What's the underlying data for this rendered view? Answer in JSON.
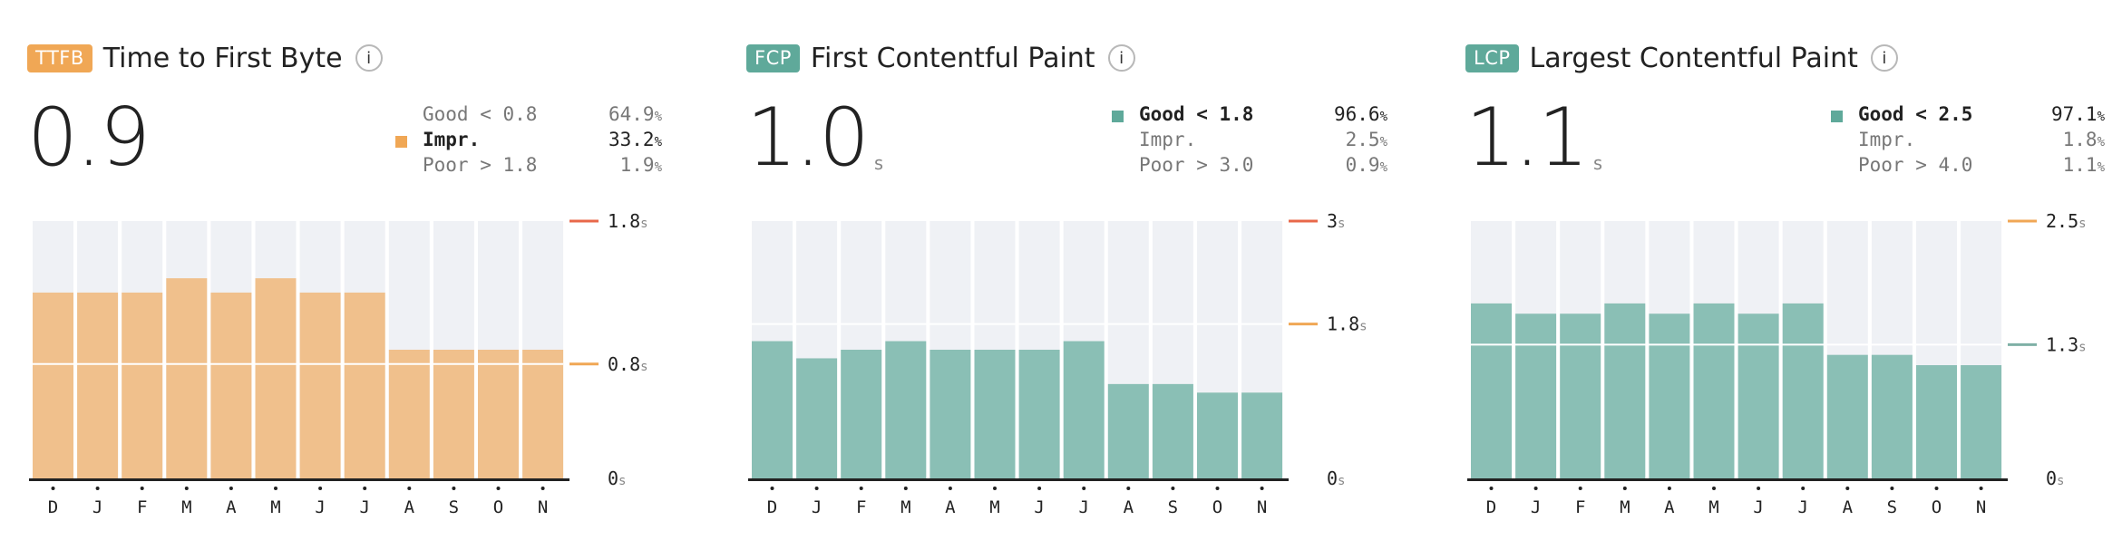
{
  "colors": {
    "ttfb": "#f0a755",
    "ttfb_bar": "#f0c08c",
    "good": "#5fa99a",
    "good_bar": "#8abfb5",
    "bg_bar": "#eff1f5",
    "threshold_poor": "#e8684a",
    "threshold_ni": "#f0a755",
    "threshold_good": "#7fb0a6"
  },
  "panels": [
    {
      "badge": "TTFB",
      "title": "Time to First Byte",
      "info_icon": "i",
      "value": "0.9",
      "unit": "",
      "legend": [
        {
          "label": "Good < 0.8",
          "pct": "64.9",
          "active": false
        },
        {
          "label": "Impr.",
          "pct": "33.2",
          "active": true
        },
        {
          "label": "Poor > 1.8",
          "pct": "1.9",
          "active": false
        }
      ]
    },
    {
      "badge": "FCP",
      "title": "First Contentful Paint",
      "info_icon": "i",
      "value": "1.0",
      "unit": "s",
      "legend": [
        {
          "label": "Good < 1.8",
          "pct": "96.6",
          "active": true
        },
        {
          "label": "Impr.",
          "pct": "2.5",
          "active": false
        },
        {
          "label": "Poor > 3.0",
          "pct": "0.9",
          "active": false
        }
      ]
    },
    {
      "badge": "LCP",
      "title": "Largest Contentful Paint",
      "info_icon": "i",
      "value": "1.1",
      "unit": "s",
      "legend": [
        {
          "label": "Good < 2.5",
          "pct": "97.1",
          "active": true
        },
        {
          "label": "Impr.",
          "pct": "1.8",
          "active": false
        },
        {
          "label": "Poor > 4.0",
          "pct": "1.1",
          "active": false
        }
      ]
    }
  ],
  "chart_data": [
    {
      "type": "bar",
      "title": "Time to First Byte",
      "categories": [
        "D",
        "J",
        "F",
        "M",
        "A",
        "M",
        "J",
        "J",
        "A",
        "S",
        "O",
        "N"
      ],
      "values": [
        1.3,
        1.3,
        1.3,
        1.4,
        1.3,
        1.4,
        1.3,
        1.3,
        0.9,
        0.9,
        0.9,
        0.9
      ],
      "ylim": [
        0,
        1.8
      ],
      "y_ticks": [
        {
          "value": 1.8,
          "label": "1.8",
          "unit": "s",
          "color": "#e8684a"
        },
        {
          "value": 0.8,
          "label": "0.8",
          "unit": "s",
          "color": "#f0a755"
        },
        {
          "value": 0,
          "label": "0",
          "unit": "s",
          "color": ""
        }
      ],
      "gridlines": [
        0.8
      ],
      "bar_color": "#f0c08c",
      "grid": true
    },
    {
      "type": "bar",
      "title": "First Contentful Paint",
      "categories": [
        "D",
        "J",
        "F",
        "M",
        "A",
        "M",
        "J",
        "J",
        "A",
        "S",
        "O",
        "N"
      ],
      "values": [
        1.6,
        1.4,
        1.5,
        1.6,
        1.5,
        1.5,
        1.5,
        1.6,
        1.1,
        1.1,
        1.0,
        1.0
      ],
      "ylim": [
        0,
        3.0
      ],
      "y_ticks": [
        {
          "value": 3.0,
          "label": "3",
          "unit": "s",
          "color": "#e8684a"
        },
        {
          "value": 1.8,
          "label": "1.8",
          "unit": "s",
          "color": "#f0a755"
        },
        {
          "value": 0,
          "label": "0",
          "unit": "s",
          "color": ""
        }
      ],
      "gridlines": [
        1.8
      ],
      "bar_color": "#8abfb5",
      "grid": true
    },
    {
      "type": "bar",
      "title": "Largest Contentful Paint",
      "categories": [
        "D",
        "J",
        "F",
        "M",
        "A",
        "M",
        "J",
        "J",
        "A",
        "S",
        "O",
        "N"
      ],
      "values": [
        1.7,
        1.6,
        1.6,
        1.7,
        1.6,
        1.7,
        1.6,
        1.7,
        1.2,
        1.2,
        1.1,
        1.1
      ],
      "ylim": [
        0,
        2.5
      ],
      "y_ticks": [
        {
          "value": 2.5,
          "label": "2.5",
          "unit": "s",
          "color": "#f0a755"
        },
        {
          "value": 1.3,
          "label": "1.3",
          "unit": "s",
          "color": "#7fb0a6"
        },
        {
          "value": 0,
          "label": "0",
          "unit": "s",
          "color": ""
        }
      ],
      "gridlines": [
        1.3
      ],
      "bar_color": "#8abfb5",
      "grid": true
    }
  ]
}
